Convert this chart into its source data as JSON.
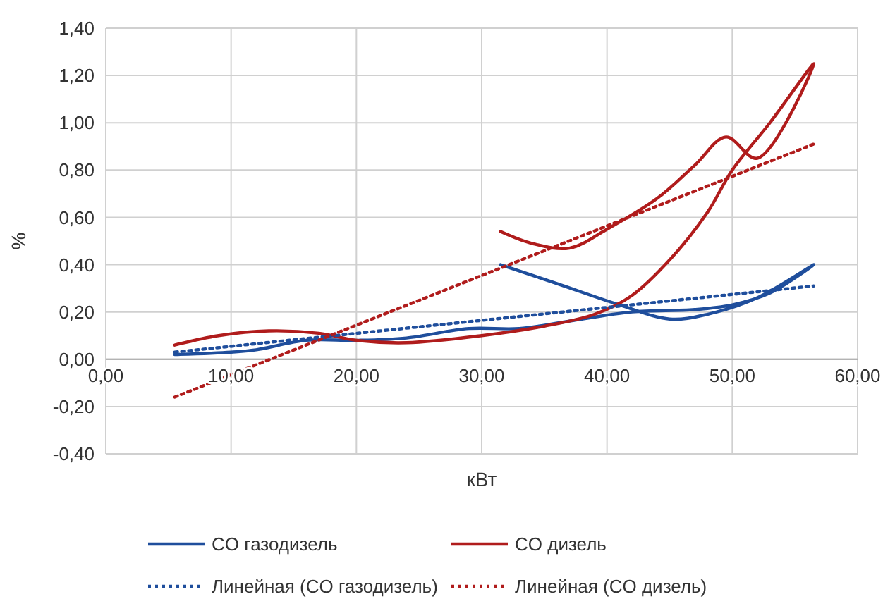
{
  "chart_data": {
    "type": "line",
    "xlabel": "кВт",
    "ylabel": "%",
    "xlim": [
      0,
      60
    ],
    "xticks": [
      {
        "value": 0,
        "label": "0,00"
      },
      {
        "value": 10,
        "label": "10,00"
      },
      {
        "value": 20,
        "label": "20,00"
      },
      {
        "value": 30,
        "label": "30,00"
      },
      {
        "value": 40,
        "label": "40,00"
      },
      {
        "value": 50,
        "label": "50,00"
      },
      {
        "value": 60,
        "label": "60,00"
      }
    ],
    "ylim": [
      -0.4,
      1.4
    ],
    "yticks": [
      {
        "value": -0.4,
        "label": "-0,40"
      },
      {
        "value": -0.2,
        "label": "-0,20"
      },
      {
        "value": 0,
        "label": "0,00"
      },
      {
        "value": 0.2,
        "label": "0,20"
      },
      {
        "value": 0.4,
        "label": "0,40"
      },
      {
        "value": 0.6,
        "label": "0,60"
      },
      {
        "value": 0.8,
        "label": "0,80"
      },
      {
        "value": 1,
        "label": "1,00"
      },
      {
        "value": 1.2,
        "label": "1,20"
      },
      {
        "value": 1.4,
        "label": "1,40"
      }
    ],
    "grid": true,
    "legend": "bottom",
    "marker": "none",
    "series": [
      {
        "name": "CO газодизель",
        "color": "#1f4e9c",
        "line_style": "solid",
        "x": [
          5.5,
          10,
          12,
          16,
          20,
          24,
          29,
          33,
          38,
          42,
          47,
          50,
          53,
          56.5,
          52,
          48,
          45,
          41,
          36,
          31.5
        ],
        "values": [
          0.02,
          0.03,
          0.04,
          0.08,
          0.08,
          0.09,
          0.13,
          0.13,
          0.17,
          0.2,
          0.21,
          0.23,
          0.28,
          0.4,
          0.26,
          0.19,
          0.17,
          0.23,
          0.32,
          0.4
        ]
      },
      {
        "name": "CO дизель",
        "color": "#b01c1c",
        "line_style": "solid",
        "x": [
          5.5,
          9,
          13,
          17,
          20,
          24,
          30,
          35,
          39,
          42,
          45,
          48,
          50,
          53,
          56.5,
          52,
          49.5,
          47,
          44,
          40,
          37,
          34,
          31.5
        ],
        "values": [
          0.06,
          0.1,
          0.12,
          0.11,
          0.08,
          0.07,
          0.1,
          0.14,
          0.19,
          0.27,
          0.42,
          0.62,
          0.8,
          1,
          1.25,
          0.85,
          0.94,
          0.82,
          0.68,
          0.55,
          0.47,
          0.49,
          0.54
        ]
      },
      {
        "name": "Линейная (CO газодизель)",
        "color": "#1f4e9c",
        "line_style": "dotted",
        "x": [
          5.5,
          56.5
        ],
        "values": [
          0.03,
          0.31
        ]
      },
      {
        "name": "Линейная (CO дизель)",
        "color": "#b01c1c",
        "line_style": "dotted",
        "x": [
          5.5,
          56.5
        ],
        "values": [
          -0.16,
          0.91
        ]
      }
    ]
  }
}
